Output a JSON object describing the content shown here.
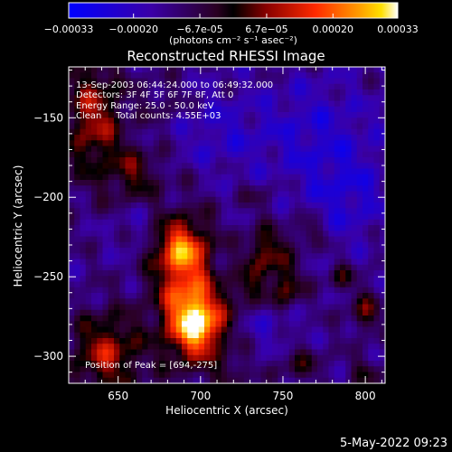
{
  "chart_data": {
    "type": "heatmap",
    "title": "Reconstructed RHESSI Image",
    "xlabel": "Heliocentric X (arcsec)",
    "ylabel": "Heliocentric Y (arcsec)",
    "xlim": [
      620,
      812
    ],
    "ylim": [
      -317,
      -118
    ],
    "x_ticks": [
      "650",
      "700",
      "750",
      "800"
    ],
    "x_tick_values": [
      650,
      700,
      750,
      800
    ],
    "y_ticks": [
      "-150",
      "-200",
      "-250",
      "-300"
    ],
    "y_tick_values": [
      -150,
      -200,
      -250,
      -300
    ],
    "colorbar": {
      "range": [
        -0.00033,
        0.00033
      ],
      "ticks": [
        "-0.00033",
        "-0.00020",
        "-6.7e-05",
        "6.7e-05",
        "0.00020",
        "0.00033"
      ],
      "tick_values": [
        -0.00033,
        -0.0002,
        -6.7e-05,
        6.7e-05,
        0.0002,
        0.00033
      ],
      "units": "(photons cm⁻² s⁻¹ asec⁻²)"
    },
    "annotations": {
      "time": "13-Sep-2003 06:44:24.000 to 06:49:32.000",
      "detectors": "Detectors: 3F 4F 5F 6F 7F 8F, Att 0",
      "energy": "Energy Range: 25.0 - 50.0 keV",
      "clean": "Clean     Total counts: 4.55E+03",
      "peak": "Position of Peak = [694,-275]"
    },
    "peak": [
      694,
      -275
    ],
    "sources": [
      {
        "x": 690,
        "y": -258,
        "w": 0.00026,
        "sx": 13,
        "sy": 30
      },
      {
        "x": 700,
        "y": -280,
        "w": 0.00033,
        "sx": 11,
        "sy": 14
      },
      {
        "x": 688,
        "y": -232,
        "w": 0.0002,
        "sx": 11,
        "sy": 11
      },
      {
        "x": 643,
        "y": -298,
        "w": 0.00022,
        "sx": 15,
        "sy": 18
      },
      {
        "x": 635,
        "y": -150,
        "w": 0.00021,
        "sx": 13,
        "sy": 27
      },
      {
        "x": 660,
        "y": -185,
        "w": 0.00014,
        "sx": 11,
        "sy": 12
      },
      {
        "x": 740,
        "y": -235,
        "w": 0.00019,
        "sx": 9,
        "sy": 11
      },
      {
        "x": 752,
        "y": -258,
        "w": 0.00017,
        "sx": 7,
        "sy": 10
      },
      {
        "x": 728,
        "y": -258,
        "w": 0.00013,
        "sx": 7,
        "sy": 8
      },
      {
        "x": 765,
        "y": -222,
        "w": 0.00011,
        "sx": 6,
        "sy": 7
      },
      {
        "x": 800,
        "y": -272,
        "w": 0.00014,
        "sx": 7,
        "sy": 9
      },
      {
        "x": 785,
        "y": -250,
        "w": 0.00011,
        "sx": 6,
        "sy": 6
      },
      {
        "x": 760,
        "y": -305,
        "w": 0.0001,
        "sx": 10,
        "sy": 8
      },
      {
        "x": 718,
        "y": -310,
        "w": 9e-05,
        "sx": 8,
        "sy": 7
      },
      {
        "x": 800,
        "y": -310,
        "w": 0.0001,
        "sx": 7,
        "sy": 6
      },
      {
        "x": 735,
        "y": -200,
        "w": 6e-05,
        "sx": 8,
        "sy": 6
      },
      {
        "x": 678,
        "y": -140,
        "w": 6e-05,
        "sx": 9,
        "sy": 10
      },
      {
        "x": 712,
        "y": -160,
        "w": -7e-05,
        "sx": 20,
        "sy": 18
      },
      {
        "x": 770,
        "y": -160,
        "w": -9e-05,
        "sx": 25,
        "sy": 25
      },
      {
        "x": 790,
        "y": -200,
        "w": -9e-05,
        "sx": 18,
        "sy": 20
      },
      {
        "x": 745,
        "y": -280,
        "w": -6e-05,
        "sx": 12,
        "sy": 12
      },
      {
        "x": 660,
        "y": -220,
        "w": -4e-05,
        "sx": 10,
        "sy": 10
      }
    ]
  },
  "footer_date": "5-May-2022 09:23"
}
